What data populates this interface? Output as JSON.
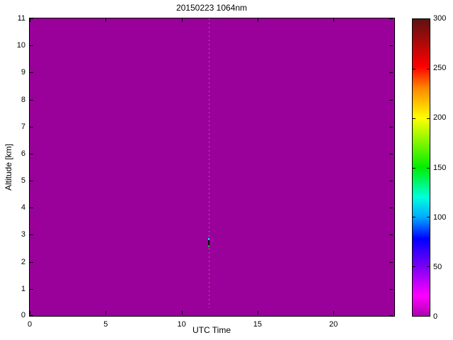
{
  "figure": {
    "title": "20150223 1064nm",
    "xlabel": "UTC Time",
    "ylabel": "Altitude [km]",
    "background_color": "#ffffff",
    "axis_color": "#000000"
  },
  "chart_data": {
    "type": "heatmap",
    "title": "20150223 1064nm",
    "xlabel": "UTC Time",
    "ylabel": "Altitude [km]",
    "xlim": [
      0,
      24
    ],
    "ylim": [
      0,
      11
    ],
    "x_ticks": [
      0,
      5,
      10,
      15,
      20
    ],
    "y_ticks": [
      0,
      1,
      2,
      3,
      4,
      5,
      6,
      7,
      8,
      9,
      10,
      11
    ],
    "grid": false,
    "background_value": 0,
    "background_color": "#9a009a",
    "colorbar": {
      "range": [
        0,
        300
      ],
      "ticks": [
        0,
        50,
        100,
        150,
        200,
        250,
        300
      ],
      "inner_tick_values": [
        50,
        100,
        150,
        200,
        250
      ],
      "colormap_stops": [
        {
          "value": 0,
          "color": "#ad00ad"
        },
        {
          "value": 20,
          "color": "#ff00ff"
        },
        {
          "value": 50,
          "color": "#7a00f5"
        },
        {
          "value": 78,
          "color": "#0000ff"
        },
        {
          "value": 100,
          "color": "#00aaff"
        },
        {
          "value": 120,
          "color": "#00ffdd"
        },
        {
          "value": 150,
          "color": "#00ee00"
        },
        {
          "value": 200,
          "color": "#ffff00"
        },
        {
          "value": 230,
          "color": "#ff8800"
        },
        {
          "value": 252,
          "color": "#ff0000"
        },
        {
          "value": 300,
          "color": "#5c1212"
        }
      ]
    },
    "features": [
      {
        "kind": "vertical-streak",
        "utc": 11.8,
        "altitude_range": [
          0.3,
          11
        ],
        "color": "#c75fc7",
        "description": "faint dotted vertical profile line at UTC ~11.8"
      },
      {
        "kind": "point",
        "utc": 11.8,
        "altitude": 2.85,
        "thickness_km": 0.08,
        "color": "#22ccff",
        "approx_value": 110
      },
      {
        "kind": "point",
        "utc": 11.8,
        "altitude": 2.71,
        "thickness_km": 0.2,
        "color": "#150015",
        "approx_value": 0
      },
      {
        "kind": "point",
        "utc": 11.8,
        "altitude": 2.58,
        "thickness_km": 0.08,
        "color": "#11aa22",
        "approx_value": 140
      }
    ]
  }
}
